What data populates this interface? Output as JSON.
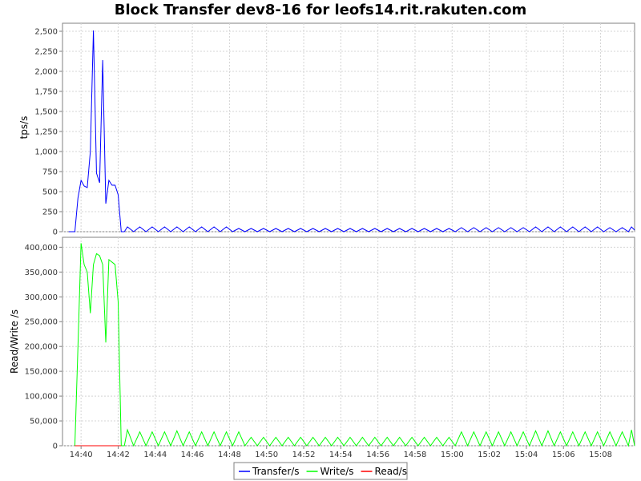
{
  "chart_data": {
    "type": "line",
    "title": "Block Transfer dev8-16 for leofs14.rit.rakuten.com",
    "x_ticks": [
      "14:40",
      "14:42",
      "14:44",
      "14:46",
      "14:48",
      "14:50",
      "14:52",
      "14:54",
      "14:56",
      "14:58",
      "15:00",
      "15:02",
      "15:04",
      "15:06",
      "15:08"
    ],
    "xlim": [
      "14:39:00",
      "15:09:50"
    ],
    "panels": [
      {
        "ylabel": "tps/s",
        "ylim": [
          0,
          2600
        ],
        "yticks": [
          0,
          250,
          500,
          750,
          1000,
          1250,
          1500,
          1750,
          2000,
          2250,
          2500
        ],
        "ytick_labels": [
          "0",
          "250",
          "500",
          "750",
          "1,000",
          "1,250",
          "1,500",
          "1,750",
          "2,000",
          "2,250",
          "2,500"
        ],
        "series": [
          {
            "name": "Transfer/s",
            "color": "#0000ff",
            "points": [
              [
                "14:39:20",
                0
              ],
              [
                "14:39:40",
                0
              ],
              [
                "14:39:50",
                420
              ],
              [
                "14:40:00",
                640
              ],
              [
                "14:40:10",
                570
              ],
              [
                "14:40:20",
                550
              ],
              [
                "14:40:30",
                1000
              ],
              [
                "14:40:40",
                2510
              ],
              [
                "14:40:50",
                730
              ],
              [
                "14:41:00",
                610
              ],
              [
                "14:41:10",
                2140
              ],
              [
                "14:41:20",
                350
              ],
              [
                "14:41:30",
                640
              ],
              [
                "14:41:40",
                580
              ],
              [
                "14:41:50",
                580
              ],
              [
                "14:42:00",
                460
              ],
              [
                "14:42:10",
                0
              ],
              [
                "14:42:20",
                0
              ],
              [
                "14:42:30",
                60
              ],
              [
                "14:42:50",
                0
              ],
              [
                "14:43:10",
                60
              ],
              [
                "14:43:30",
                0
              ],
              [
                "14:43:50",
                60
              ],
              [
                "14:44:10",
                0
              ],
              [
                "14:44:30",
                60
              ],
              [
                "14:44:50",
                0
              ],
              [
                "14:45:10",
                60
              ],
              [
                "14:45:30",
                0
              ],
              [
                "14:45:50",
                60
              ],
              [
                "14:46:10",
                0
              ],
              [
                "14:46:30",
                60
              ],
              [
                "14:46:50",
                0
              ],
              [
                "14:47:10",
                60
              ],
              [
                "14:47:30",
                0
              ],
              [
                "14:47:50",
                60
              ],
              [
                "14:48:10",
                0
              ],
              [
                "14:48:30",
                40
              ],
              [
                "14:48:50",
                0
              ],
              [
                "14:49:10",
                40
              ],
              [
                "14:49:30",
                0
              ],
              [
                "14:49:50",
                40
              ],
              [
                "14:50:10",
                0
              ],
              [
                "14:50:30",
                40
              ],
              [
                "14:50:50",
                0
              ],
              [
                "14:51:10",
                40
              ],
              [
                "14:51:30",
                0
              ],
              [
                "14:51:50",
                40
              ],
              [
                "14:52:10",
                0
              ],
              [
                "14:52:30",
                40
              ],
              [
                "14:52:50",
                0
              ],
              [
                "14:53:10",
                40
              ],
              [
                "14:53:30",
                0
              ],
              [
                "14:53:50",
                40
              ],
              [
                "14:54:10",
                0
              ],
              [
                "14:54:30",
                40
              ],
              [
                "14:54:50",
                0
              ],
              [
                "14:55:10",
                40
              ],
              [
                "14:55:30",
                0
              ],
              [
                "14:55:50",
                40
              ],
              [
                "14:56:10",
                0
              ],
              [
                "14:56:30",
                40
              ],
              [
                "14:56:50",
                0
              ],
              [
                "14:57:10",
                40
              ],
              [
                "14:57:30",
                0
              ],
              [
                "14:57:50",
                40
              ],
              [
                "14:58:10",
                0
              ],
              [
                "14:58:30",
                40
              ],
              [
                "14:58:50",
                0
              ],
              [
                "14:59:10",
                40
              ],
              [
                "14:59:30",
                0
              ],
              [
                "14:59:50",
                40
              ],
              [
                "15:00:10",
                0
              ],
              [
                "15:00:30",
                50
              ],
              [
                "15:00:50",
                0
              ],
              [
                "15:01:10",
                50
              ],
              [
                "15:01:30",
                0
              ],
              [
                "15:01:50",
                50
              ],
              [
                "15:02:10",
                0
              ],
              [
                "15:02:30",
                50
              ],
              [
                "15:02:50",
                0
              ],
              [
                "15:03:10",
                50
              ],
              [
                "15:03:30",
                0
              ],
              [
                "15:03:50",
                50
              ],
              [
                "15:04:10",
                0
              ],
              [
                "15:04:30",
                60
              ],
              [
                "15:04:50",
                0
              ],
              [
                "15:05:10",
                60
              ],
              [
                "15:05:30",
                0
              ],
              [
                "15:05:50",
                60
              ],
              [
                "15:06:10",
                0
              ],
              [
                "15:06:30",
                60
              ],
              [
                "15:06:50",
                0
              ],
              [
                "15:07:10",
                60
              ],
              [
                "15:07:30",
                0
              ],
              [
                "15:07:50",
                60
              ],
              [
                "15:08:10",
                0
              ],
              [
                "15:08:30",
                50
              ],
              [
                "15:08:50",
                0
              ],
              [
                "15:09:10",
                50
              ],
              [
                "15:09:30",
                0
              ],
              [
                "15:09:40",
                60
              ],
              [
                "15:09:50",
                20
              ]
            ]
          }
        ]
      },
      {
        "ylabel": "Read/Write /s",
        "ylim": [
          0,
          420000
        ],
        "yticks": [
          0,
          50000,
          100000,
          150000,
          200000,
          250000,
          300000,
          350000,
          400000
        ],
        "ytick_labels": [
          "0",
          "50,000",
          "100,000",
          "150,000",
          "200,000",
          "250,000",
          "300,000",
          "350,000",
          "400,000"
        ],
        "series": [
          {
            "name": "Write/s",
            "color": "#00ff00",
            "points": [
              [
                "14:39:40",
                0
              ],
              [
                "14:39:50",
                200000
              ],
              [
                "14:40:00",
                408000
              ],
              [
                "14:40:10",
                365000
              ],
              [
                "14:40:20",
                350000
              ],
              [
                "14:40:30",
                267000
              ],
              [
                "14:40:40",
                365000
              ],
              [
                "14:40:50",
                387000
              ],
              [
                "14:41:00",
                383000
              ],
              [
                "14:41:10",
                365000
              ],
              [
                "14:41:20",
                208000
              ],
              [
                "14:41:30",
                375000
              ],
              [
                "14:41:40",
                370000
              ],
              [
                "14:41:50",
                365000
              ],
              [
                "14:42:00",
                290000
              ],
              [
                "14:42:10",
                0
              ],
              [
                "14:42:20",
                0
              ],
              [
                "14:42:30",
                32000
              ],
              [
                "14:42:50",
                0
              ],
              [
                "14:43:10",
                28000
              ],
              [
                "14:43:30",
                0
              ],
              [
                "14:43:50",
                28000
              ],
              [
                "14:44:10",
                0
              ],
              [
                "14:44:30",
                28000
              ],
              [
                "14:44:50",
                0
              ],
              [
                "14:45:10",
                30000
              ],
              [
                "14:45:30",
                0
              ],
              [
                "14:45:50",
                28000
              ],
              [
                "14:46:10",
                0
              ],
              [
                "14:46:30",
                28000
              ],
              [
                "14:46:50",
                0
              ],
              [
                "14:47:10",
                28000
              ],
              [
                "14:47:30",
                0
              ],
              [
                "14:47:50",
                28000
              ],
              [
                "14:48:10",
                0
              ],
              [
                "14:48:30",
                28000
              ],
              [
                "14:48:50",
                0
              ],
              [
                "14:49:10",
                17000
              ],
              [
                "14:49:30",
                0
              ],
              [
                "14:49:50",
                17000
              ],
              [
                "14:50:10",
                0
              ],
              [
                "14:50:30",
                17000
              ],
              [
                "14:50:50",
                0
              ],
              [
                "14:51:10",
                17000
              ],
              [
                "14:51:30",
                0
              ],
              [
                "14:51:50",
                17000
              ],
              [
                "14:52:10",
                0
              ],
              [
                "14:52:30",
                17000
              ],
              [
                "14:52:50",
                0
              ],
              [
                "14:53:10",
                17000
              ],
              [
                "14:53:30",
                0
              ],
              [
                "14:53:50",
                17000
              ],
              [
                "14:54:10",
                0
              ],
              [
                "14:54:30",
                17000
              ],
              [
                "14:54:50",
                0
              ],
              [
                "14:55:10",
                17000
              ],
              [
                "14:55:30",
                0
              ],
              [
                "14:55:50",
                17000
              ],
              [
                "14:56:10",
                0
              ],
              [
                "14:56:30",
                17000
              ],
              [
                "14:56:50",
                0
              ],
              [
                "14:57:10",
                17000
              ],
              [
                "14:57:30",
                0
              ],
              [
                "14:57:50",
                17000
              ],
              [
                "14:58:10",
                0
              ],
              [
                "14:58:30",
                17000
              ],
              [
                "14:58:50",
                0
              ],
              [
                "14:59:10",
                17000
              ],
              [
                "14:59:30",
                0
              ],
              [
                "14:59:50",
                17000
              ],
              [
                "15:00:10",
                0
              ],
              [
                "15:00:30",
                28000
              ],
              [
                "15:00:50",
                0
              ],
              [
                "15:01:10",
                28000
              ],
              [
                "15:01:30",
                0
              ],
              [
                "15:01:50",
                28000
              ],
              [
                "15:02:10",
                0
              ],
              [
                "15:02:30",
                28000
              ],
              [
                "15:02:50",
                0
              ],
              [
                "15:03:10",
                28000
              ],
              [
                "15:03:30",
                0
              ],
              [
                "15:03:50",
                28000
              ],
              [
                "15:04:10",
                0
              ],
              [
                "15:04:30",
                30000
              ],
              [
                "15:04:50",
                0
              ],
              [
                "15:05:10",
                30000
              ],
              [
                "15:05:30",
                0
              ],
              [
                "15:05:50",
                28000
              ],
              [
                "15:06:10",
                0
              ],
              [
                "15:06:30",
                28000
              ],
              [
                "15:06:50",
                0
              ],
              [
                "15:07:10",
                28000
              ],
              [
                "15:07:30",
                0
              ],
              [
                "15:07:50",
                28000
              ],
              [
                "15:08:10",
                0
              ],
              [
                "15:08:30",
                28000
              ],
              [
                "15:08:50",
                0
              ],
              [
                "15:09:10",
                28000
              ],
              [
                "15:09:30",
                0
              ],
              [
                "15:09:40",
                32000
              ],
              [
                "15:09:50",
                0
              ]
            ]
          },
          {
            "name": "Read/s",
            "color": "#ff0000",
            "points": [
              [
                "14:39:40",
                0
              ],
              [
                "14:42:10",
                0
              ]
            ]
          }
        ]
      }
    ],
    "legend": {
      "placement": "bottom-center",
      "entries": [
        {
          "name": "Transfer/s",
          "color": "#0000ff"
        },
        {
          "name": "Write/s",
          "color": "#00ff00"
        },
        {
          "name": "Read/s",
          "color": "#ff0000"
        }
      ]
    },
    "grid": true
  }
}
